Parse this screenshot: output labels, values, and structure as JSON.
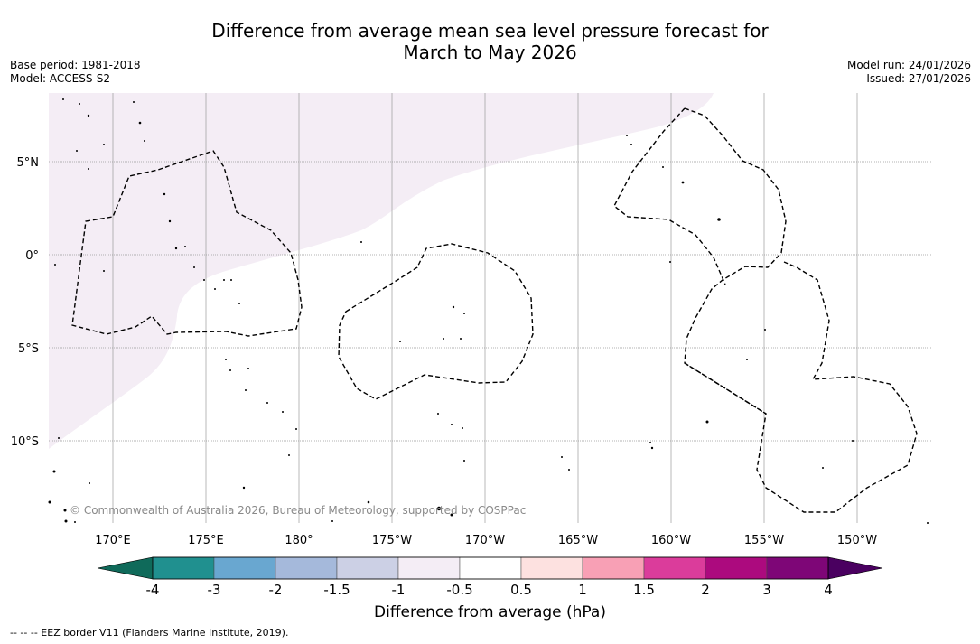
{
  "title": {
    "line1": "Difference from average mean sea level pressure forecast for",
    "line2": "March to May 2026"
  },
  "meta": {
    "base_period": "Base period: 1981-2018",
    "model": "Model: ACCESS-S2",
    "model_run": "Model run: 24/01/2026",
    "issued": "Issued: 27/01/2026"
  },
  "map": {
    "lat_labels": [
      "5°N",
      "0°",
      "5°S",
      "10°S"
    ],
    "lon_labels": [
      "170°E",
      "175°E",
      "180°",
      "175°W",
      "170°W",
      "165°W",
      "160°W",
      "155°W",
      "150°W"
    ],
    "copyright": "© Commonwealth of Australia 2026, Bureau of Meteorology, supported by COSPPac",
    "colors": {
      "anomaly_fill": "#f4edf5",
      "eez_line": "#000000",
      "gridline": "#9a9a9a"
    }
  },
  "colorbar": {
    "label": "Difference from average (hPa)",
    "tick_labels": [
      "-4",
      "-3",
      "-2",
      "-1.5",
      "-1",
      "-0.5",
      "0.5",
      "1",
      "1.5",
      "2",
      "3",
      "4"
    ],
    "colors": [
      "#0f6a5a",
      "#20908f",
      "#69a7d0",
      "#a5b9db",
      "#ccd0e5",
      "#f4edf5",
      "#ffffff",
      "#fde1e0",
      "#f8a0b5",
      "#db3c9b",
      "#ac0a7e",
      "#7e0677",
      "#4a0060"
    ]
  },
  "footer": {
    "eez_legend": "--  --  -- EEZ border V11 (Flanders Marine Institute, 2019)."
  }
}
